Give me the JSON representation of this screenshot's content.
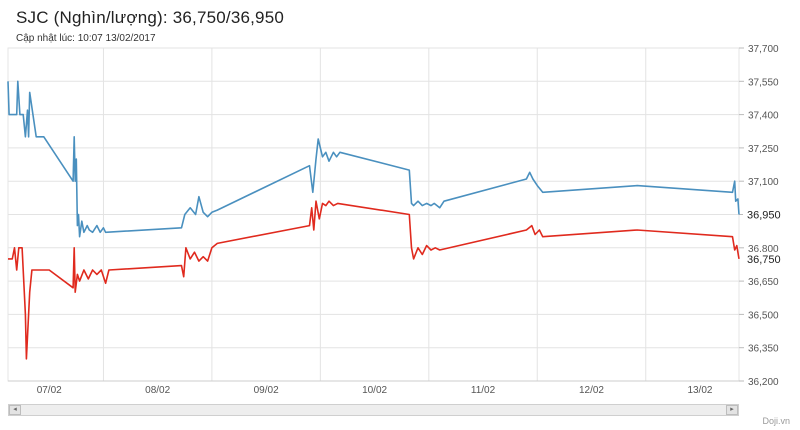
{
  "header": {
    "title": "SJC (Nghìn/lượng): 36,750/36,950",
    "updated": "Cập nhật lúc: 10:07 13/02/2017"
  },
  "credit": "Doji.vn",
  "scrollbar": {
    "left_icon": "◂",
    "right_icon": "▸"
  },
  "chart_data": {
    "type": "line",
    "title": "SJC (Nghìn/lượng): 36,750/36,950",
    "x_tick_labels": [
      "07/02",
      "08/02",
      "09/02",
      "10/02",
      "11/02",
      "12/02",
      "13/02"
    ],
    "x_range": [
      6.62,
      13.36
    ],
    "ylim": [
      36200,
      37700
    ],
    "y_tick_values": [
      36200,
      36350,
      36500,
      36650,
      36800,
      36950,
      37100,
      37250,
      37400,
      37550,
      37700
    ],
    "y_tick_labels": [
      "36,200",
      "36,350",
      "36,500",
      "36,650",
      "36,800",
      "36,950",
      "37,100",
      "37,250",
      "37,400",
      "37,550",
      "37,700"
    ],
    "last_value_labels": [
      "36,950",
      "36,750"
    ],
    "grid": true,
    "y_axis_position": "right",
    "series": [
      {
        "color": "#4a90bf",
        "points": [
          [
            6.62,
            37550
          ],
          [
            6.63,
            37400
          ],
          [
            6.7,
            37400
          ],
          [
            6.71,
            37550
          ],
          [
            6.73,
            37400
          ],
          [
            6.76,
            37400
          ],
          [
            6.78,
            37300
          ],
          [
            6.8,
            37420
          ],
          [
            6.81,
            37300
          ],
          [
            6.82,
            37500
          ],
          [
            6.88,
            37300
          ],
          [
            6.95,
            37300
          ],
          [
            7.22,
            37100
          ],
          [
            7.23,
            37300
          ],
          [
            7.24,
            37100
          ],
          [
            7.25,
            37200
          ],
          [
            7.26,
            36900
          ],
          [
            7.27,
            36950
          ],
          [
            7.28,
            36850
          ],
          [
            7.3,
            36920
          ],
          [
            7.32,
            36870
          ],
          [
            7.35,
            36900
          ],
          [
            7.37,
            36880
          ],
          [
            7.4,
            36870
          ],
          [
            7.44,
            36900
          ],
          [
            7.47,
            36870
          ],
          [
            7.5,
            36890
          ],
          [
            7.52,
            36870
          ],
          [
            8.22,
            36890
          ],
          [
            8.25,
            36950
          ],
          [
            8.3,
            36980
          ],
          [
            8.35,
            36950
          ],
          [
            8.38,
            37030
          ],
          [
            8.42,
            36960
          ],
          [
            8.46,
            36940
          ],
          [
            8.5,
            36960
          ],
          [
            8.55,
            36970
          ],
          [
            9.4,
            37170
          ],
          [
            9.43,
            37050
          ],
          [
            9.46,
            37200
          ],
          [
            9.48,
            37290
          ],
          [
            9.52,
            37210
          ],
          [
            9.55,
            37230
          ],
          [
            9.58,
            37190
          ],
          [
            9.62,
            37230
          ],
          [
            9.65,
            37210
          ],
          [
            9.68,
            37230
          ],
          [
            10.32,
            37150
          ],
          [
            10.34,
            37000
          ],
          [
            10.36,
            36990
          ],
          [
            10.4,
            37010
          ],
          [
            10.44,
            36990
          ],
          [
            10.48,
            37000
          ],
          [
            10.52,
            36990
          ],
          [
            10.55,
            37000
          ],
          [
            10.6,
            36980
          ],
          [
            10.64,
            37010
          ],
          [
            11.4,
            37110
          ],
          [
            11.43,
            37140
          ],
          [
            11.46,
            37110
          ],
          [
            11.5,
            37080
          ],
          [
            11.55,
            37050
          ],
          [
            12.42,
            37080
          ],
          [
            13.3,
            37050
          ],
          [
            13.32,
            37100
          ],
          [
            13.33,
            37010
          ],
          [
            13.35,
            37020
          ],
          [
            13.36,
            36950
          ]
        ]
      },
      {
        "color": "#e02a1e",
        "points": [
          [
            6.62,
            36750
          ],
          [
            6.66,
            36750
          ],
          [
            6.68,
            36800
          ],
          [
            6.7,
            36700
          ],
          [
            6.72,
            36800
          ],
          [
            6.75,
            36800
          ],
          [
            6.78,
            36500
          ],
          [
            6.79,
            36300
          ],
          [
            6.8,
            36400
          ],
          [
            6.81,
            36500
          ],
          [
            6.82,
            36600
          ],
          [
            6.84,
            36700
          ],
          [
            7.0,
            36700
          ],
          [
            7.22,
            36620
          ],
          [
            7.23,
            36800
          ],
          [
            7.24,
            36600
          ],
          [
            7.26,
            36680
          ],
          [
            7.28,
            36650
          ],
          [
            7.32,
            36700
          ],
          [
            7.36,
            36660
          ],
          [
            7.4,
            36700
          ],
          [
            7.44,
            36680
          ],
          [
            7.48,
            36700
          ],
          [
            7.52,
            36640
          ],
          [
            7.55,
            36700
          ],
          [
            8.22,
            36720
          ],
          [
            8.24,
            36670
          ],
          [
            8.26,
            36800
          ],
          [
            8.3,
            36750
          ],
          [
            8.34,
            36780
          ],
          [
            8.38,
            36740
          ],
          [
            8.42,
            36760
          ],
          [
            8.46,
            36740
          ],
          [
            8.5,
            36800
          ],
          [
            8.55,
            36820
          ],
          [
            9.4,
            36900
          ],
          [
            9.42,
            36980
          ],
          [
            9.44,
            36880
          ],
          [
            9.46,
            37010
          ],
          [
            9.49,
            36930
          ],
          [
            9.52,
            37000
          ],
          [
            9.55,
            36990
          ],
          [
            9.58,
            37010
          ],
          [
            9.62,
            36990
          ],
          [
            9.66,
            37000
          ],
          [
            10.32,
            36950
          ],
          [
            10.34,
            36800
          ],
          [
            10.36,
            36750
          ],
          [
            10.4,
            36800
          ],
          [
            10.44,
            36770
          ],
          [
            10.48,
            36810
          ],
          [
            10.52,
            36790
          ],
          [
            10.56,
            36800
          ],
          [
            10.6,
            36790
          ],
          [
            11.4,
            36880
          ],
          [
            11.45,
            36900
          ],
          [
            11.48,
            36860
          ],
          [
            11.52,
            36880
          ],
          [
            11.55,
            36850
          ],
          [
            12.42,
            36880
          ],
          [
            13.3,
            36850
          ],
          [
            13.32,
            36790
          ],
          [
            13.34,
            36810
          ],
          [
            13.36,
            36750
          ]
        ]
      }
    ]
  }
}
